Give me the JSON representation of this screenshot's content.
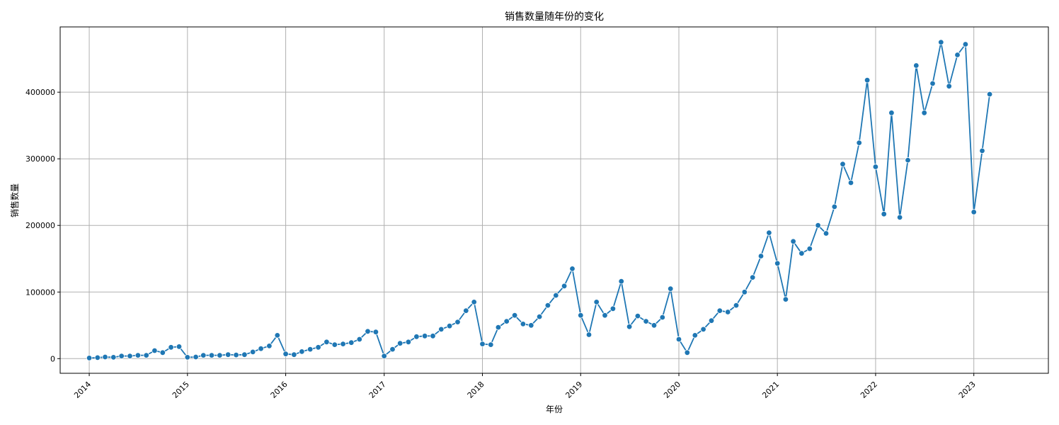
{
  "chart_data": {
    "type": "line",
    "title": "销售数量随年份的变化",
    "xlabel": "年份",
    "ylabel": "销售数量",
    "x_ticks": [
      "2014",
      "2015",
      "2016",
      "2017",
      "2018",
      "2019",
      "2020",
      "2021",
      "2022",
      "2023"
    ],
    "y_ticks": [
      "0",
      "100000",
      "200000",
      "300000",
      "400000"
    ],
    "ylim": [
      -22000,
      498000
    ],
    "xlim": [
      "2013-09-15",
      "2023-10-05"
    ],
    "grid": true,
    "color": "#1f77b4",
    "marker": "circle",
    "series": [
      {
        "x": [
          "2014-01",
          "2014-02",
          "2014-03",
          "2014-04",
          "2014-05",
          "2014-06",
          "2014-07",
          "2014-08",
          "2014-09",
          "2014-10",
          "2014-11",
          "2014-12",
          "2015-01",
          "2015-02",
          "2015-03",
          "2015-04",
          "2015-05",
          "2015-06",
          "2015-07",
          "2015-08",
          "2015-09",
          "2015-10",
          "2015-11",
          "2015-12",
          "2016-01",
          "2016-02",
          "2016-03",
          "2016-04",
          "2016-05",
          "2016-06",
          "2016-07",
          "2016-08",
          "2016-09",
          "2016-10",
          "2016-11",
          "2016-12",
          "2017-01",
          "2017-02",
          "2017-03",
          "2017-04",
          "2017-05",
          "2017-06",
          "2017-07",
          "2017-08",
          "2017-09",
          "2017-10",
          "2017-11",
          "2017-12",
          "2018-01",
          "2018-02",
          "2018-03",
          "2018-04",
          "2018-05",
          "2018-06",
          "2018-07",
          "2018-08",
          "2018-09",
          "2018-10",
          "2018-11",
          "2018-12",
          "2019-01",
          "2019-02",
          "2019-03",
          "2019-04",
          "2019-05",
          "2019-06",
          "2019-07",
          "2019-08",
          "2019-09",
          "2019-10",
          "2019-11",
          "2019-12",
          "2020-01",
          "2020-02",
          "2020-03",
          "2020-04",
          "2020-05",
          "2020-06",
          "2020-07",
          "2020-08",
          "2020-09",
          "2020-10",
          "2020-11",
          "2020-12",
          "2021-01",
          "2021-02",
          "2021-03",
          "2021-04",
          "2021-05",
          "2021-06",
          "2021-07",
          "2021-08",
          "2021-09",
          "2021-10",
          "2021-11",
          "2021-12",
          "2022-01",
          "2022-02",
          "2022-03",
          "2022-04",
          "2022-05",
          "2022-06",
          "2022-07",
          "2022-08",
          "2022-09",
          "2022-10",
          "2022-11",
          "2022-12",
          "2023-01",
          "2023-02",
          "2023-03"
        ],
        "values": [
          1000,
          1500,
          2500,
          2000,
          4000,
          4000,
          5000,
          5000,
          12000,
          9000,
          17000,
          18000,
          2000,
          2500,
          5000,
          5000,
          5000,
          6000,
          5500,
          6000,
          10000,
          15000,
          19000,
          35000,
          7000,
          6000,
          10500,
          14000,
          17000,
          25000,
          21000,
          22000,
          24000,
          29000,
          41000,
          40000,
          4000,
          14000,
          23000,
          25000,
          33000,
          34000,
          34000,
          44000,
          49000,
          55000,
          72000,
          85000,
          22000,
          21000,
          47000,
          56000,
          65000,
          52000,
          50000,
          63000,
          80000,
          95000,
          109000,
          135000,
          65000,
          36000,
          85000,
          65000,
          75000,
          116000,
          48000,
          64000,
          56000,
          50000,
          62000,
          105000,
          29000,
          9000,
          35000,
          44000,
          57000,
          72000,
          70000,
          80000,
          100000,
          122000,
          154000,
          189000,
          143000,
          89000,
          176000,
          158000,
          165000,
          200000,
          188000,
          228000,
          292000,
          264000,
          324000,
          418000,
          288000,
          217000,
          369000,
          212000,
          298000,
          440000,
          369000,
          413000,
          475000,
          409000,
          456000,
          472000,
          220000,
          312000,
          397000
        ]
      }
    ]
  }
}
